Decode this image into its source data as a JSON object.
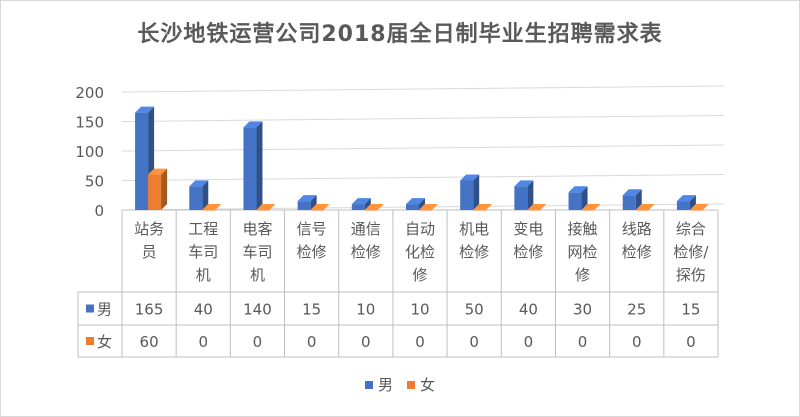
{
  "chart_data": {
    "type": "bar",
    "title": "长沙地铁运营公司2018届全日制毕业生招聘需求表",
    "categories": [
      [
        "站务",
        "员"
      ],
      [
        "工程",
        "车司",
        "机"
      ],
      [
        "电客",
        "车司",
        "机"
      ],
      [
        "信号",
        "检修"
      ],
      [
        "通信",
        "检修"
      ],
      [
        "自动",
        "化检",
        "修"
      ],
      [
        "机电",
        "检修"
      ],
      [
        "变电",
        "检修"
      ],
      [
        "接触",
        "网检",
        "修"
      ],
      [
        "线路",
        "检修"
      ],
      [
        "综合",
        "检修/",
        "探伤"
      ]
    ],
    "series": [
      {
        "name": "男",
        "color": "#4472c4",
        "values": [
          165,
          40,
          140,
          15,
          10,
          10,
          50,
          40,
          30,
          25,
          15
        ]
      },
      {
        "name": "女",
        "color": "#ed7d31",
        "values": [
          60,
          0,
          0,
          0,
          0,
          0,
          0,
          0,
          0,
          0,
          0
        ]
      }
    ],
    "ylim": [
      0,
      200
    ],
    "yticks": [
      0,
      50,
      100,
      150,
      200
    ],
    "grid": true,
    "legend": "bottom",
    "data_table": true
  }
}
